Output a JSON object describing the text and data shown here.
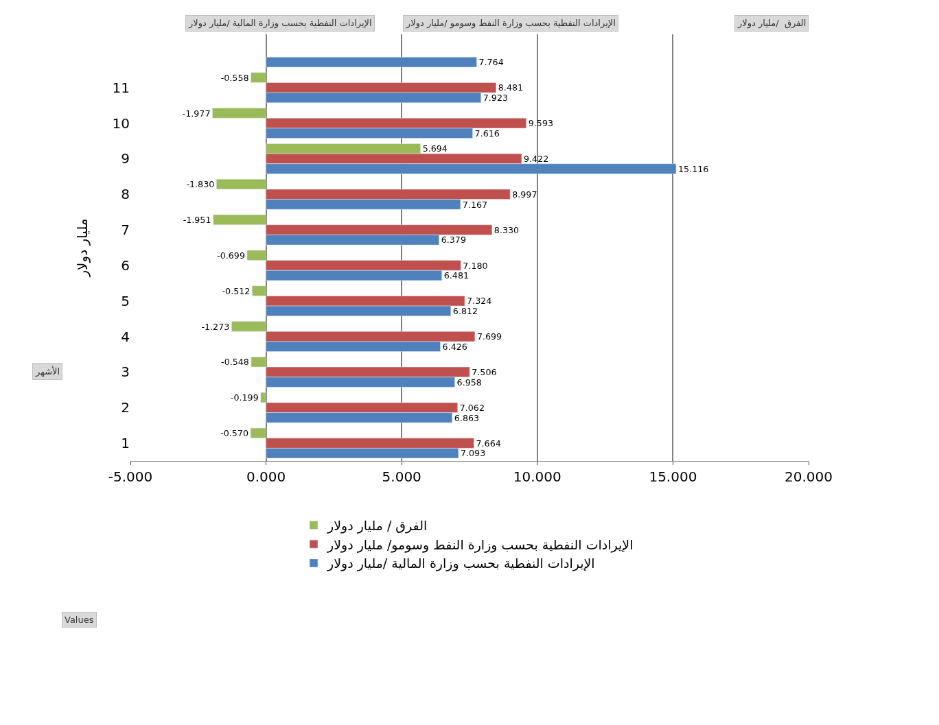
{
  "chart_data": {
    "type": "bar",
    "orientation": "horizontal",
    "ylabel": "مليار دولار",
    "categories": [
      null,
      "11",
      "10",
      "9",
      "8",
      "7",
      "6",
      "5",
      "4",
      "3",
      "2",
      "1"
    ],
    "series": [
      {
        "name": "الفرق / مليار دولار",
        "color": "#9bbb59",
        "values": [
          null,
          -0.558,
          -1.977,
          5.694,
          -1.83,
          -1.951,
          -0.699,
          -0.512,
          -1.273,
          -0.548,
          -0.199,
          -0.57
        ],
        "value_labels": [
          null,
          "-0.558",
          "-1.977",
          "5.694",
          "-1.830",
          "-1.951",
          "-0.699",
          "-0.512",
          "-1.273",
          "-0.548",
          "-0.199",
          "-0.570"
        ]
      },
      {
        "name": "الإيرادات النفطية بحسب وزارة النفط وسومو/ مليار دولار",
        "color": "#c0504d",
        "values": [
          null,
          8.481,
          9.593,
          9.422,
          8.997,
          8.33,
          7.18,
          7.324,
          7.699,
          7.506,
          7.062,
          7.664
        ],
        "value_labels": [
          null,
          "8.481",
          "9.593",
          "9.422",
          "8.997",
          "8.330",
          "7.180",
          "7.324",
          "7.699",
          "7.506",
          "7.062",
          "7.664"
        ]
      },
      {
        "name": "الإيرادات النفطية بحسب وزارة المالية /مليار دولار",
        "color": "#4f81bd",
        "values": [
          7.764,
          7.923,
          7.616,
          15.116,
          7.167,
          6.379,
          6.481,
          6.812,
          6.426,
          6.958,
          6.863,
          7.093
        ],
        "value_labels": [
          "7.764",
          "7.923",
          "7.616",
          "15.116",
          "7.167",
          "6.379",
          "6.481",
          "6.812",
          "6.426",
          "6.958",
          "6.863",
          "7.093"
        ]
      }
    ],
    "xlim": [
      -5,
      20
    ],
    "xticks": [
      {
        "value": -5,
        "label": "-5.000"
      },
      {
        "value": 0,
        "label": "0.000"
      },
      {
        "value": 5,
        "label": "5.000"
      },
      {
        "value": 10,
        "label": "10.000"
      },
      {
        "value": 15,
        "label": "15.000"
      },
      {
        "value": 20,
        "label": "20.000"
      }
    ],
    "grid": "x",
    "legend": "bottom left",
    "annotations": [
      "الإيرادات النفطية بحسب وزارة المالية /مليار دولار",
      "الإيرادات النفطية بحسب وزارة النفط وسومو /مليار دولار",
      "الفرق  /مليار دولار",
      "الأشهر",
      "Values"
    ]
  }
}
